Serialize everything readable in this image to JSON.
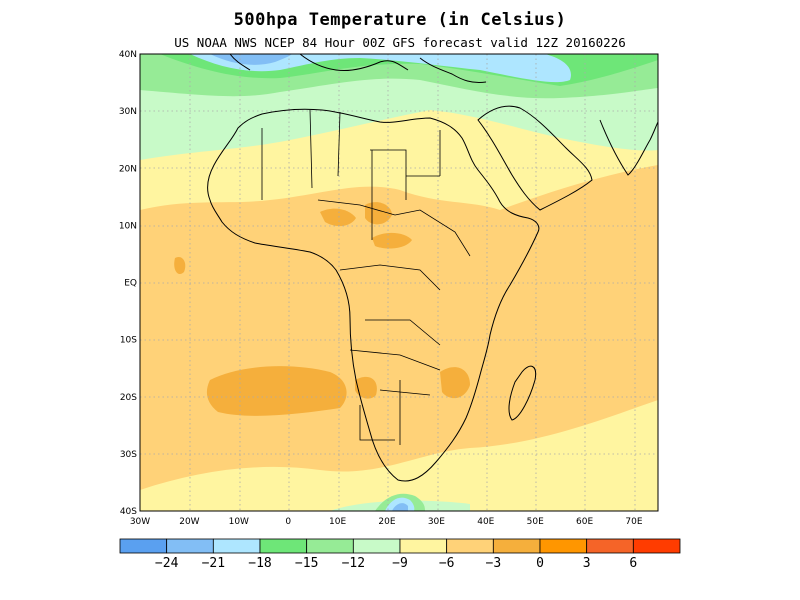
{
  "title": "500hpa  Temperature (in Celsius)",
  "subtitle": "US NOAA NWS NCEP 84 Hour 00Z GFS forecast valid 12Z 20160226",
  "colors": {
    "bin_-27_-24": "#5aa0f0",
    "bin_-24_-21": "#82bef5",
    "bin_-21_-18": "#aee6ff",
    "bin_-18_-15": "#6ee678",
    "bin_-15_-12": "#96eb96",
    "bin_-12_-9": "#c8fac8",
    "bin_-9_-6": "#fff5a0",
    "bin_-6_-3": "#ffd278",
    "bin_-3_0": "#f5af3c",
    "bin_0_3": "#ff9600",
    "bin_3_6": "#f56428",
    "bin_6_9": "#ff3c00",
    "coast": "#000000",
    "grid": "#aaaaaa"
  },
  "map": {
    "lon_range": [
      -30,
      76
    ],
    "lat_range": [
      -40,
      40
    ],
    "lat_ticks": [
      "40N",
      "30N",
      "20N",
      "10N",
      "EQ",
      "10S",
      "20S",
      "30S",
      "40S"
    ],
    "lon_ticks": [
      "30W",
      "20W",
      "10W",
      "0",
      "10E",
      "20E",
      "30E",
      "40E",
      "50E",
      "60E",
      "70E"
    ],
    "grid": "dotted"
  },
  "colorbar": {
    "labels": [
      "-24",
      "-21",
      "-18",
      "-15",
      "-12",
      "-9",
      "-6",
      "-3",
      "0",
      "3",
      "6"
    ]
  }
}
